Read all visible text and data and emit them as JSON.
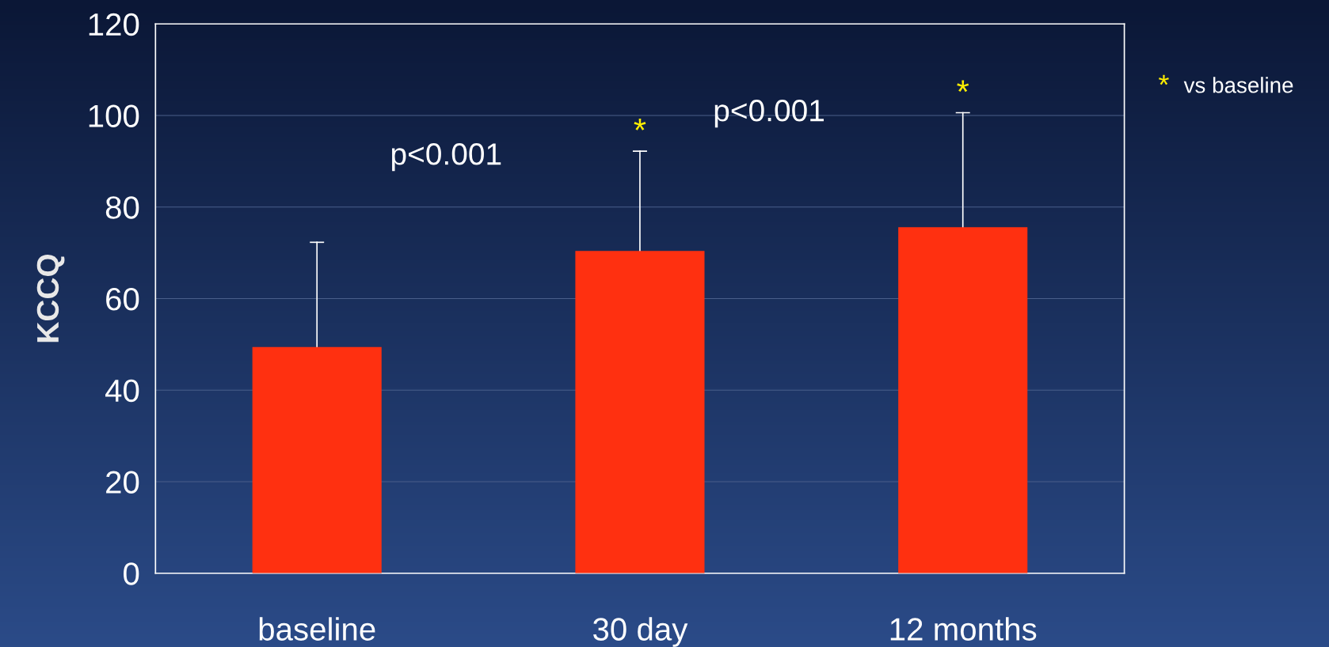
{
  "chart_data": {
    "type": "bar",
    "ylabel": "KCCQ",
    "categories": [
      "baseline",
      "30 day",
      "12 months"
    ],
    "values": [
      49.4,
      70.4,
      75.6
    ],
    "errors": [
      [
        49.4,
        72.3
      ],
      [
        70.4,
        92.2
      ],
      [
        75.6,
        100.6
      ]
    ],
    "color": "#ff3010",
    "ylim": [
      0,
      120
    ],
    "yticks": [
      0,
      20,
      40,
      60,
      80,
      100,
      120
    ],
    "grid": "y",
    "annotations": [
      "p<0.001",
      "p<0.001",
      "*",
      "*",
      "* vs baseline"
    ]
  }
}
